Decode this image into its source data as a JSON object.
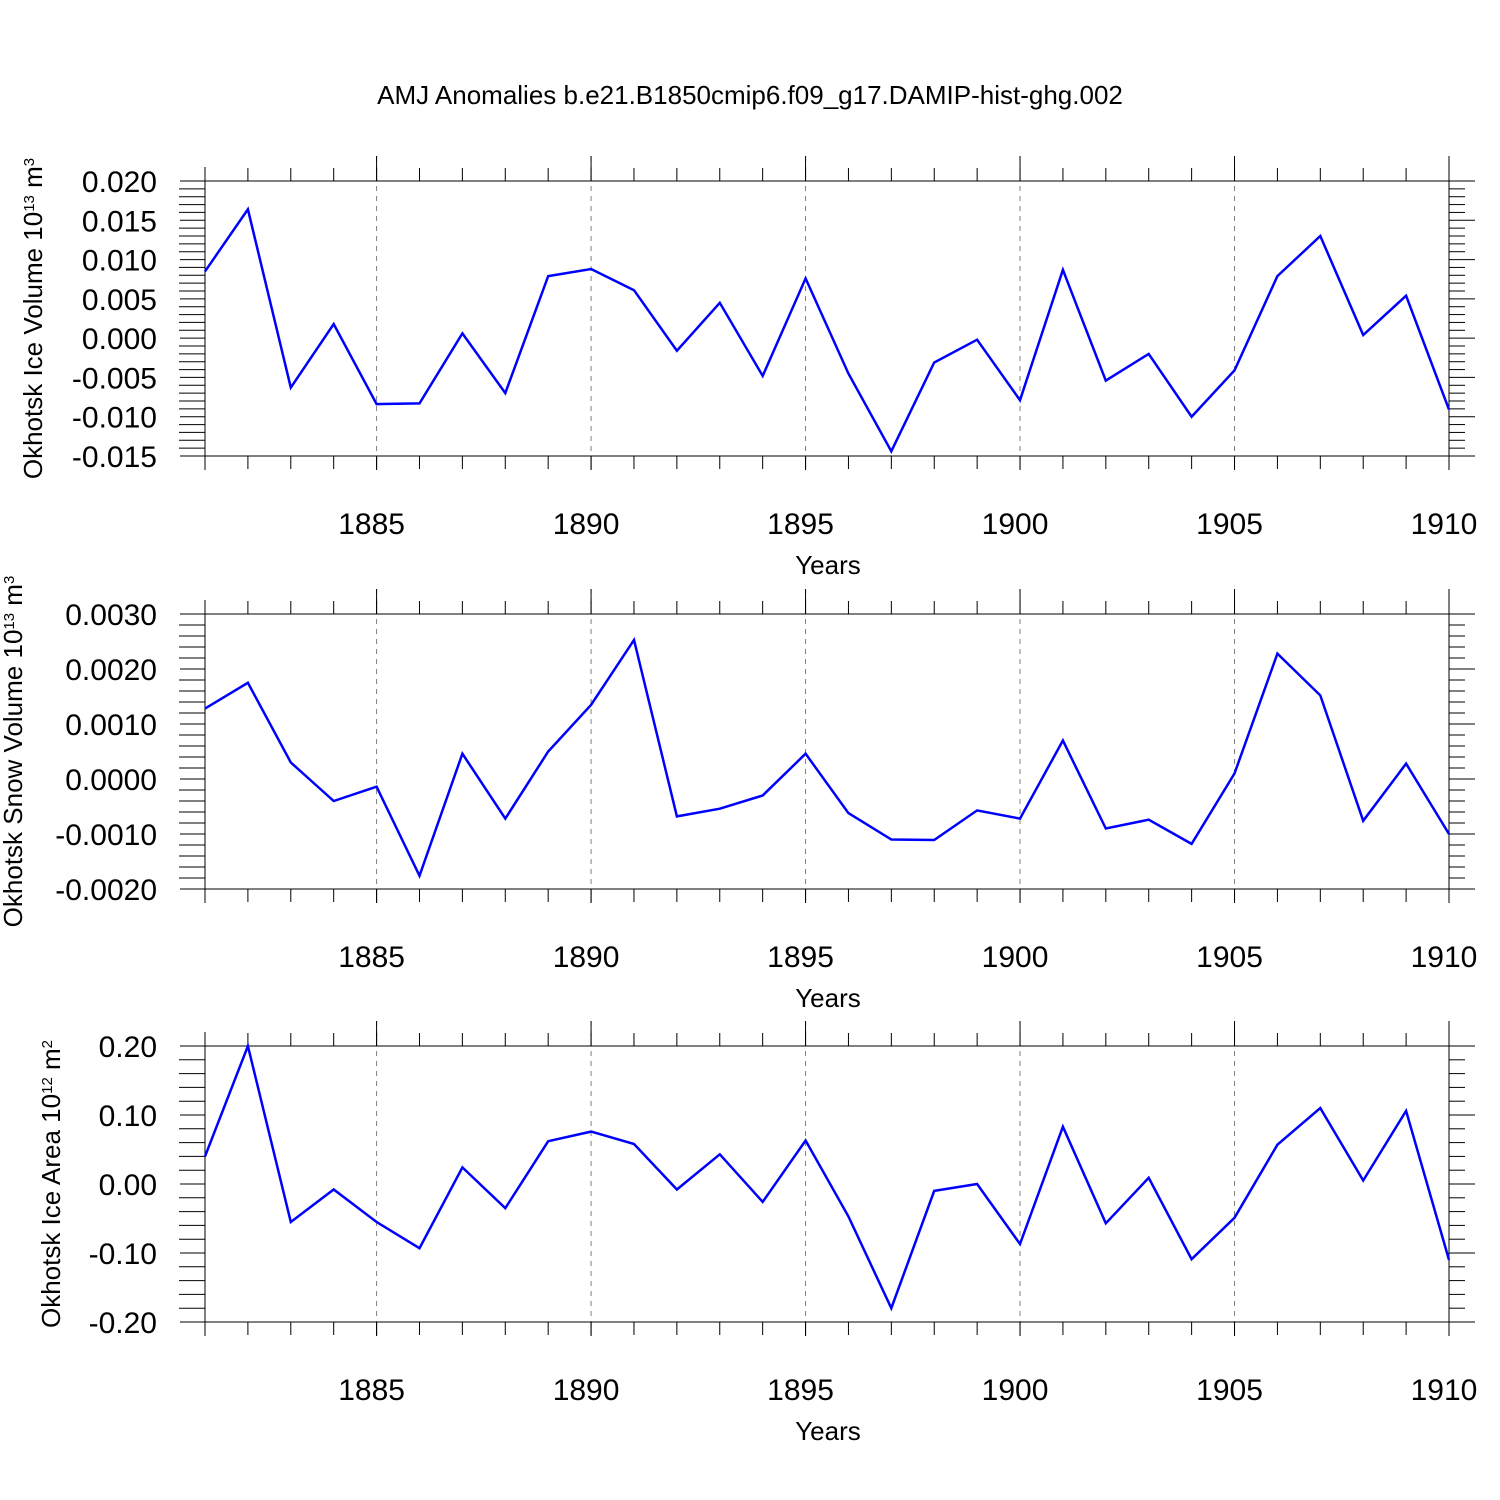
{
  "title": "AMJ Anomalies b.e21.B1850cmip6.f09_g17.DAMIP-hist-ghg.002",
  "colors": {
    "line": "#0000ff",
    "axis": "#000000",
    "grid": "#808080"
  },
  "chart_data": [
    {
      "type": "line",
      "title": "",
      "xlabel": "Years",
      "ylabel": {
        "text": "Okhotsk Ice Volume 10",
        "exponent": "13",
        "unit": "m",
        "unit_exponent": "3"
      },
      "xlim": [
        1881,
        1910
      ],
      "ylim": [
        -0.015,
        0.02
      ],
      "xticks": [
        1885,
        1890,
        1895,
        1900,
        1905,
        1910
      ],
      "xtick_labels": [
        "1885",
        "1890",
        "1895",
        "1900",
        "1905",
        "1910"
      ],
      "yticks": [
        0.02,
        0.015,
        0.01,
        0.005,
        0.0,
        -0.005,
        -0.01,
        -0.015
      ],
      "ytick_labels": [
        "0.020",
        "0.015",
        "0.010",
        "0.005",
        "0.000",
        "-0.005",
        "-0.010",
        "-0.015"
      ],
      "grid": "vertical dashed at major x ticks",
      "x": [
        1881,
        1882,
        1883,
        1884,
        1885,
        1886,
        1887,
        1888,
        1889,
        1890,
        1891,
        1892,
        1893,
        1894,
        1895,
        1896,
        1897,
        1898,
        1899,
        1900,
        1901,
        1902,
        1903,
        1904,
        1905,
        1906,
        1907,
        1908,
        1909,
        1910
      ],
      "series": [
        {
          "values": [
            0.0085,
            0.0164,
            -0.0063,
            0.0018,
            -0.0084,
            -0.0083,
            0.0006,
            -0.007,
            0.0079,
            0.0088,
            0.0061,
            -0.0016,
            0.0045,
            -0.0048,
            0.0076,
            -0.0045,
            -0.0144,
            -0.0031,
            -0.0002,
            -0.0079,
            0.0087,
            -0.0054,
            -0.002,
            -0.01,
            -0.0041,
            0.0079,
            0.013,
            0.0004,
            0.0054,
            -0.0091
          ]
        }
      ]
    },
    {
      "type": "line",
      "title": "",
      "xlabel": "Years",
      "ylabel": {
        "text": "Okhotsk Snow Volume 10",
        "exponent": "13",
        "unit": "m",
        "unit_exponent": "3"
      },
      "xlim": [
        1881,
        1910
      ],
      "ylim": [
        -0.002,
        0.003
      ],
      "xticks": [
        1885,
        1890,
        1895,
        1900,
        1905,
        1910
      ],
      "xtick_labels": [
        "1885",
        "1890",
        "1895",
        "1900",
        "1905",
        "1910"
      ],
      "yticks": [
        0.003,
        0.002,
        0.001,
        0.0,
        -0.001,
        -0.002
      ],
      "ytick_labels": [
        "0.0030",
        "0.0020",
        "0.0010",
        "0.0000",
        "-0.0010",
        "-0.0020"
      ],
      "grid": "vertical dashed at major x ticks",
      "x": [
        1881,
        1882,
        1883,
        1884,
        1885,
        1886,
        1887,
        1888,
        1889,
        1890,
        1891,
        1892,
        1893,
        1894,
        1895,
        1896,
        1897,
        1898,
        1899,
        1900,
        1901,
        1902,
        1903,
        1904,
        1905,
        1906,
        1907,
        1908,
        1909,
        1910
      ],
      "series": [
        {
          "values": [
            0.00128,
            0.00175,
            0.0003,
            -0.0004,
            -0.00014,
            -0.00176,
            0.00046,
            -0.00072,
            0.0005,
            0.00135,
            0.00253,
            -0.00068,
            -0.00054,
            -0.0003,
            0.00046,
            -0.00062,
            -0.0011,
            -0.00111,
            -0.00057,
            -0.00072,
            0.0007,
            -0.0009,
            -0.00074,
            -0.00118,
            0.0001,
            0.00228,
            0.00152,
            -0.00076,
            0.00028,
            -0.001
          ]
        }
      ]
    },
    {
      "type": "line",
      "title": "",
      "xlabel": "Years",
      "ylabel": {
        "text": "Okhotsk Ice Area 10",
        "exponent": "12",
        "unit": "m",
        "unit_exponent": "2"
      },
      "xlim": [
        1881,
        1910
      ],
      "ylim": [
        -0.2,
        0.2
      ],
      "xticks": [
        1885,
        1890,
        1895,
        1900,
        1905,
        1910
      ],
      "xtick_labels": [
        "1885",
        "1890",
        "1895",
        "1900",
        "1905",
        "1910"
      ],
      "yticks": [
        0.2,
        0.1,
        0.0,
        -0.1,
        -0.2
      ],
      "ytick_labels": [
        "0.20",
        "0.10",
        "0.00",
        "-0.10",
        "-0.20"
      ],
      "grid": "vertical dashed at major x ticks",
      "x": [
        1881,
        1882,
        1883,
        1884,
        1885,
        1886,
        1887,
        1888,
        1889,
        1890,
        1891,
        1892,
        1893,
        1894,
        1895,
        1896,
        1897,
        1898,
        1899,
        1900,
        1901,
        1902,
        1903,
        1904,
        1905,
        1906,
        1907,
        1908,
        1909,
        1910
      ],
      "series": [
        {
          "values": [
            0.04,
            0.2,
            -0.055,
            -0.008,
            -0.055,
            -0.093,
            0.024,
            -0.035,
            0.062,
            0.076,
            0.058,
            -0.008,
            0.043,
            -0.026,
            0.063,
            -0.047,
            -0.18,
            -0.01,
            0.0,
            -0.087,
            0.083,
            -0.057,
            0.009,
            -0.109,
            -0.049,
            0.057,
            0.11,
            0.005,
            0.106,
            -0.11
          ]
        }
      ]
    }
  ]
}
